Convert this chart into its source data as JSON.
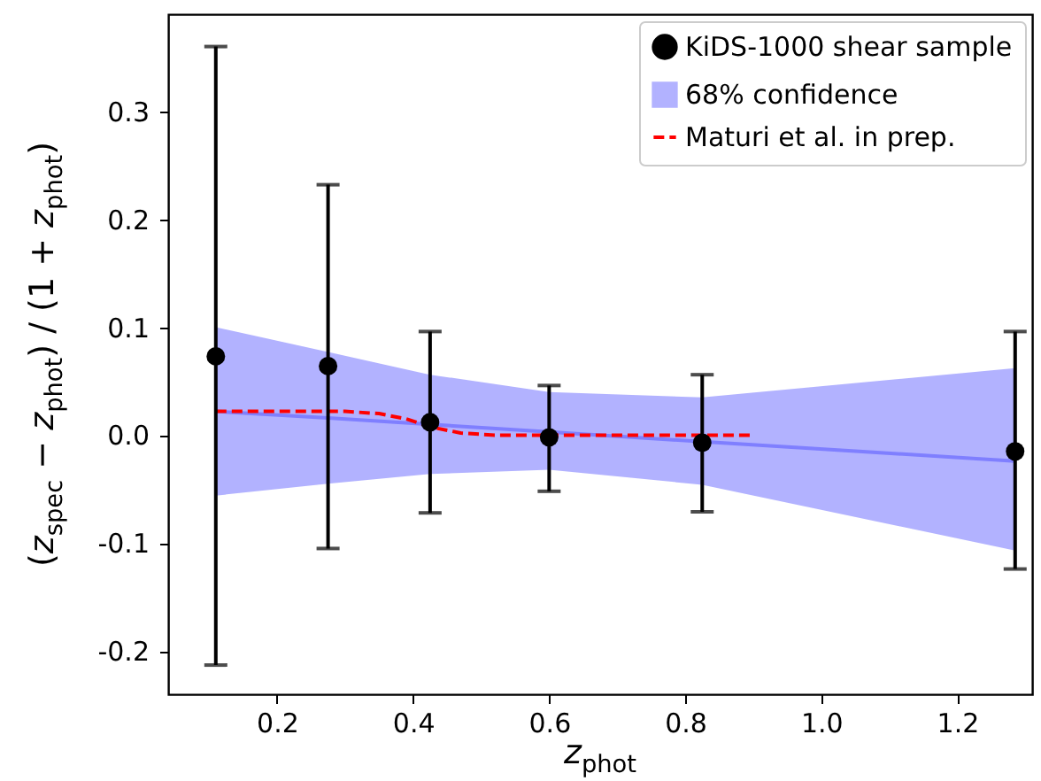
{
  "chart_data": {
    "type": "scatter",
    "xlabel": "z$_{phot}$",
    "ylabel": "(z$_{spec}$ − z$_{phot}$) / (1 + z$_{phot}$)",
    "xlim": [
      0.04,
      1.31
    ],
    "ylim": [
      -0.24,
      0.39
    ],
    "xticks": [
      0.2,
      0.4,
      0.6,
      0.8,
      {
        "value": 1,
        "label": "1.0"
      },
      1.2
    ],
    "yticks": [
      -0.2,
      -0.1,
      {
        "value": 0,
        "label": "0.0"
      },
      0.1,
      0.2,
      0.3
    ],
    "grid": false,
    "legend": "top right",
    "series": [
      {
        "name": "KiDS-1000 shear sample",
        "marker": "circle",
        "color": "#000000",
        "x": [
          0.11,
          0.275,
          0.425,
          0.6,
          0.825,
          1.285
        ],
        "values": [
          0.073,
          0.064,
          0.012,
          -0.002,
          -0.007,
          -0.015
        ],
        "errors": [
          [
            -0.213,
            0.36
          ],
          [
            -0.105,
            0.232
          ],
          [
            -0.072,
            0.096
          ],
          [
            -0.052,
            0.046
          ],
          [
            -0.071,
            0.056
          ],
          [
            -0.124,
            0.096
          ]
        ]
      },
      {
        "name": "68% confidence",
        "type": "line",
        "line_style": "solid",
        "color": "#7f7fff",
        "x": [
          0.11,
          0.275,
          0.425,
          0.6,
          0.825,
          1.285
        ],
        "values": [
          0.022,
          0.016,
          0.01,
          0.003,
          -0.006,
          -0.024
        ],
        "lower": [
          -0.056,
          -0.045,
          -0.036,
          -0.032,
          -0.046,
          -0.107
        ],
        "upper": [
          0.1,
          0.077,
          0.056,
          0.04,
          0.035,
          0.062
        ]
      },
      {
        "name": "Maturi et al. in prep.",
        "type": "line",
        "line_style": "dashed",
        "color": "#ff0000",
        "x": [
          0.11,
          0.2,
          0.3,
          0.35,
          0.39,
          0.43,
          0.47,
          0.52,
          0.6,
          0.7,
          0.8,
          0.9
        ],
        "values": [
          0.022,
          0.022,
          0.022,
          0.02,
          0.015,
          0.007,
          0.002,
          0,
          0,
          0,
          0,
          0
        ]
      }
    ]
  }
}
